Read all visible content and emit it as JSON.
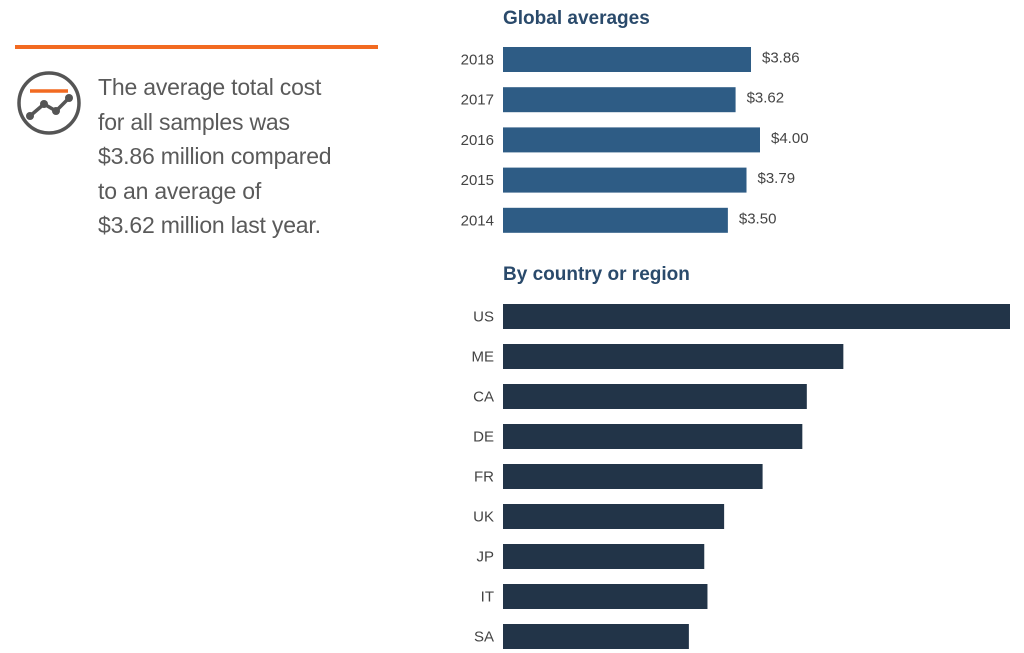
{
  "summary": {
    "text": "The average total cost\nfor all samples was\n$3.86 million compared\nto an average of\n$3.62 million last year."
  },
  "colors": {
    "accent_orange": "#f26a21",
    "icon_gray": "#555555",
    "global_bar": "#2e5c85",
    "country_bar": "#223448",
    "title_text": "#2a4a6b"
  },
  "icons": {
    "trend": "line-chart-circle-icon"
  },
  "chart_data": [
    {
      "type": "bar",
      "orientation": "horizontal",
      "title": "Global averages",
      "categories": [
        "2018",
        "2017",
        "2016",
        "2015",
        "2014"
      ],
      "values": [
        3.86,
        3.62,
        4.0,
        3.79,
        3.5
      ],
      "value_labels": [
        "$3.86",
        "$3.62",
        "$4.00",
        "$3.79",
        "$3.50"
      ],
      "xlim": [
        0,
        4.0
      ],
      "grid": false,
      "legend": "none"
    },
    {
      "type": "bar",
      "orientation": "horizontal",
      "title": "By country or region",
      "categories": [
        "US",
        "ME",
        "CA",
        "DE",
        "FR",
        "UK",
        "JP",
        "IT",
        "SA"
      ],
      "values": [
        7.91,
        5.31,
        4.74,
        4.67,
        4.05,
        3.45,
        3.14,
        3.19,
        2.9
      ],
      "xlim": [
        0,
        7.91
      ],
      "grid": false,
      "legend": "none"
    }
  ]
}
